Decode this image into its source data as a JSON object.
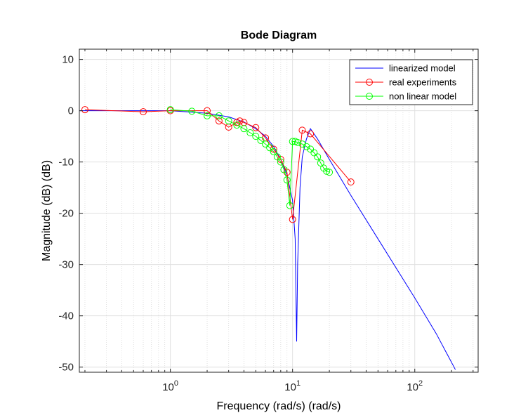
{
  "chart_data": {
    "type": "line",
    "title": "Bode Diagram",
    "xlabel": "Frequency (rad/s)  (rad/s)",
    "ylabel": "Magnitude (dB) (dB)",
    "xscale": "log",
    "xlim": [
      0.18,
      330
    ],
    "ylim": [
      -51,
      12
    ],
    "x_ticks": [
      1,
      10,
      100
    ],
    "x_tick_labels": [
      "10^0",
      "10^1",
      "10^2"
    ],
    "y_ticks": [
      10,
      0,
      -10,
      -20,
      -30,
      -40,
      -50
    ],
    "y_tick_labels": [
      "10",
      "0",
      "-10",
      "-20",
      "-30",
      "-40",
      "-50"
    ],
    "grid": true,
    "minor_grid": true,
    "legend_position": "top-right",
    "series": [
      {
        "name": "linearized model",
        "color": "#0000ff",
        "marker": "none",
        "x": [
          0.18,
          1,
          2,
          3,
          4,
          5,
          6,
          7,
          8,
          9,
          10,
          10.5,
          10.8,
          11,
          11.5,
          12,
          13,
          14,
          16,
          20,
          30,
          50,
          100,
          150,
          215
        ],
        "y": [
          0.0,
          0.0,
          -0.5,
          -1.2,
          -2.2,
          -3.5,
          -5.0,
          -7.0,
          -9.5,
          -12.5,
          -17.5,
          -25,
          -45,
          -30,
          -15,
          -9,
          -5.5,
          -3.5,
          -5.5,
          -9.5,
          -16.5,
          -25,
          -36.5,
          -43.5,
          -50.5
        ]
      },
      {
        "name": "real experiments",
        "color": "#ff0000",
        "marker": "circle",
        "x": [
          0.2,
          0.6,
          1,
          2,
          2.5,
          3,
          3.5,
          3.7,
          4,
          5,
          6,
          7,
          8,
          9,
          10,
          12,
          14,
          30
        ],
        "y": [
          0.2,
          -0.2,
          0.0,
          0.0,
          -2.0,
          -3.2,
          -2.3,
          -2.0,
          -2.3,
          -3.3,
          -5.3,
          -7.5,
          -9.5,
          -12.0,
          -21.2,
          -3.8,
          -4.5,
          -13.9
        ]
      },
      {
        "name": "non linear model",
        "color": "#00ff00",
        "marker": "circle",
        "x": [
          1,
          1.5,
          2,
          2.5,
          3,
          3.5,
          4,
          4.5,
          5,
          5.5,
          6,
          6.5,
          7,
          7.5,
          8,
          8.5,
          9,
          9.5,
          10,
          10.5,
          11,
          12,
          13,
          14,
          15,
          16,
          17,
          18,
          19,
          20
        ],
        "y": [
          0.2,
          -0.1,
          -1.0,
          -1.0,
          -2.0,
          -2.8,
          -3.5,
          -4.3,
          -5.0,
          -5.8,
          -6.5,
          -7.2,
          -8.0,
          -9.0,
          -10.0,
          -11.5,
          -13.5,
          -18.5,
          -6.0,
          -6.0,
          -6.2,
          -6.5,
          -7.0,
          -7.5,
          -8.2,
          -9.0,
          -10.2,
          -11.2,
          -11.8,
          -12.0
        ]
      }
    ]
  }
}
